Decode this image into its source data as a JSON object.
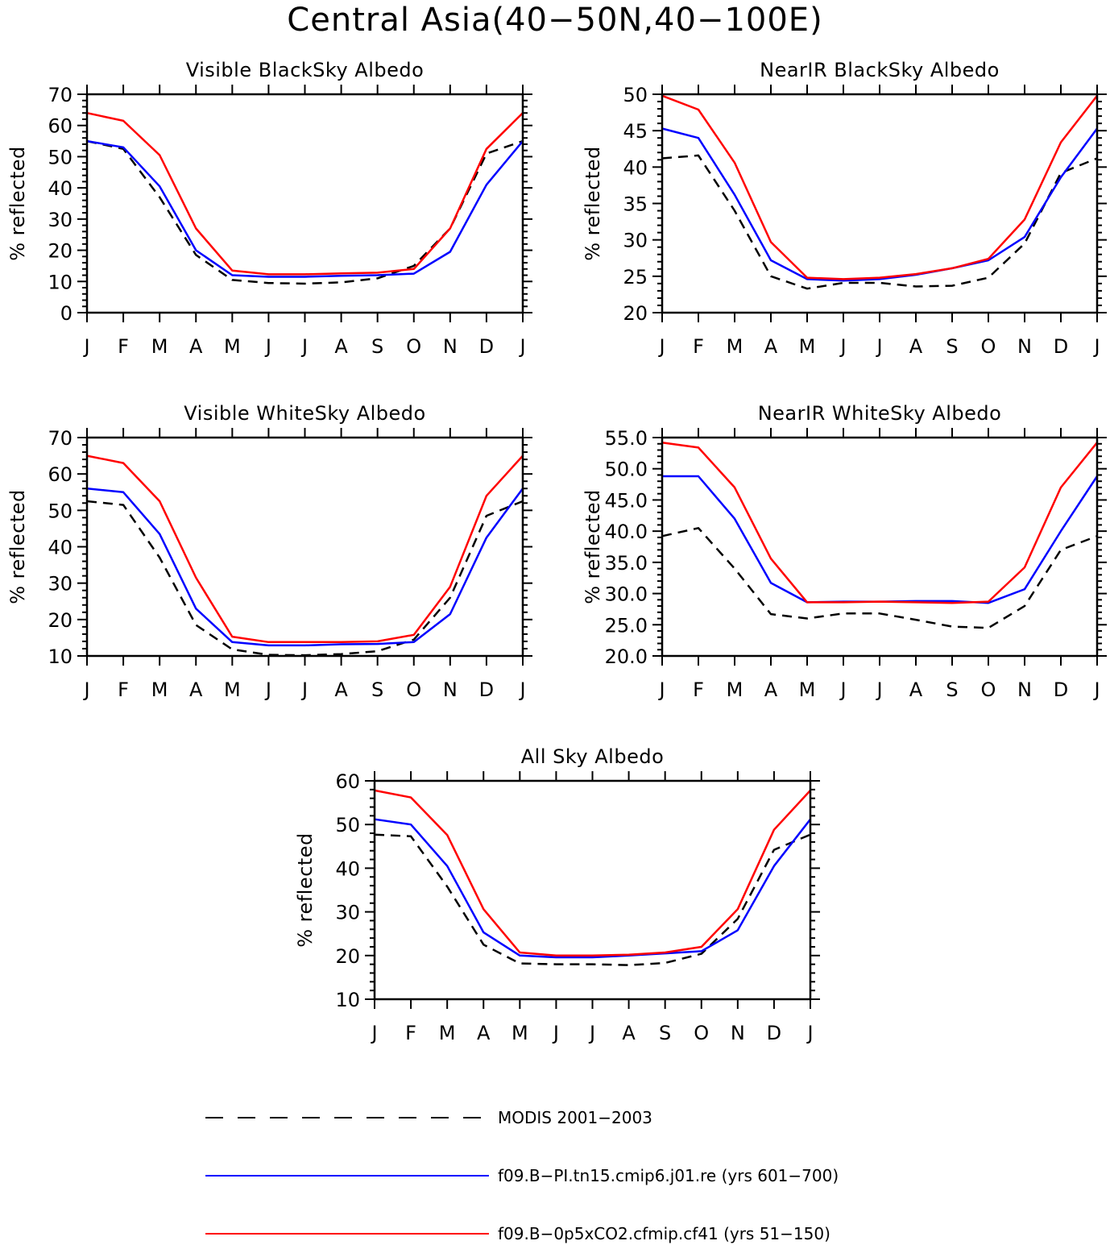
{
  "title": "Central Asia(40−50N,40−100E)",
  "colors": {
    "modis": "#000000",
    "pi": "#0000ff",
    "co2": "#ff0000"
  },
  "legend": [
    {
      "label": "MODIS 2001−2003",
      "color": "#000000",
      "style": "dashed"
    },
    {
      "label": "f09.B−PI.tn15.cmip6.j01.re (yrs 601−700)",
      "color": "#0000ff",
      "style": "solid"
    },
    {
      "label": "f09.B−0p5xCO2.cfmip.cf41 (yrs 51−150)",
      "color": "#ff0000",
      "style": "solid"
    }
  ],
  "chart_data": [
    {
      "type": "line",
      "title": "Visible BlackSky Albedo",
      "ylabel": "% reflected",
      "xlabel": "",
      "categories": [
        "J",
        "F",
        "M",
        "A",
        "M",
        "J",
        "J",
        "A",
        "S",
        "O",
        "N",
        "D",
        "J"
      ],
      "ylim": [
        0,
        70
      ],
      "yticks": [
        0,
        10,
        20,
        30,
        40,
        50,
        60,
        70
      ],
      "ytick_labels": [
        "0",
        "10",
        "20",
        "30",
        "40",
        "50",
        "60",
        "70"
      ],
      "series": [
        {
          "name": "MODIS 2001−2003",
          "style": "dashed",
          "color": "#000000",
          "values": [
            55,
            52.5,
            37,
            18.5,
            10.5,
            9.5,
            9.3,
            9.7,
            11,
            15,
            27,
            51,
            55
          ]
        },
        {
          "name": "f09.B−PI.tn15.cmip6.j01.re (yrs 601−700)",
          "style": "solid",
          "color": "#0000ff",
          "values": [
            55,
            53,
            40.5,
            20,
            12,
            11.5,
            11.5,
            11.8,
            12,
            12.5,
            19.5,
            41,
            55
          ]
        },
        {
          "name": "f09.B−0p5xCO2.cfmip.cf41 (yrs 51−150)",
          "style": "solid",
          "color": "#ff0000",
          "values": [
            64,
            61.5,
            50.5,
            27,
            13.5,
            12.3,
            12.3,
            12.6,
            12.8,
            14,
            27,
            52.5,
            64
          ]
        }
      ]
    },
    {
      "type": "line",
      "title": "NearIR BlackSky Albedo",
      "ylabel": "% reflected",
      "xlabel": "",
      "categories": [
        "J",
        "F",
        "M",
        "A",
        "M",
        "J",
        "J",
        "A",
        "S",
        "O",
        "N",
        "D",
        "J"
      ],
      "ylim": [
        20,
        50
      ],
      "yticks": [
        20,
        25,
        30,
        35,
        40,
        45,
        50
      ],
      "ytick_labels": [
        "20",
        "25",
        "30",
        "35",
        "40",
        "45",
        "50"
      ],
      "series": [
        {
          "name": "MODIS 2001−2003",
          "style": "dashed",
          "color": "#000000",
          "values": [
            41.2,
            41.6,
            34,
            25,
            23.3,
            24.1,
            24.1,
            23.6,
            23.7,
            24.8,
            29.5,
            39.2,
            41.2
          ]
        },
        {
          "name": "f09.B−PI.tn15.cmip6.j01.re (yrs 601−700)",
          "style": "solid",
          "color": "#0000ff",
          "values": [
            45.3,
            44,
            36.2,
            27.2,
            24.6,
            24.4,
            24.6,
            25.2,
            26.1,
            27.2,
            30.4,
            38.6,
            45.3
          ]
        },
        {
          "name": "f09.B−0p5xCO2.cfmip.cf41 (yrs 51−150)",
          "style": "solid",
          "color": "#ff0000",
          "values": [
            49.8,
            47.9,
            40.6,
            29.7,
            24.8,
            24.6,
            24.8,
            25.3,
            26.1,
            27.4,
            32.8,
            43.4,
            49.8
          ]
        }
      ]
    },
    {
      "type": "line",
      "title": "Visible WhiteSky Albedo",
      "ylabel": "% reflected",
      "xlabel": "",
      "categories": [
        "J",
        "F",
        "M",
        "A",
        "M",
        "J",
        "J",
        "A",
        "S",
        "O",
        "N",
        "D",
        "J"
      ],
      "ylim": [
        10,
        70
      ],
      "yticks": [
        10,
        20,
        30,
        40,
        50,
        60,
        70
      ],
      "ytick_labels": [
        "10",
        "20",
        "30",
        "40",
        "50",
        "60",
        "70"
      ],
      "series": [
        {
          "name": "MODIS 2001−2003",
          "style": "dashed",
          "color": "#000000",
          "values": [
            52.5,
            51.5,
            37,
            18.5,
            11.8,
            10.3,
            10.2,
            10.5,
            11.3,
            14.5,
            26,
            48.5,
            52.5
          ]
        },
        {
          "name": "f09.B−PI.tn15.cmip6.j01.re (yrs 601−700)",
          "style": "solid",
          "color": "#0000ff",
          "values": [
            56,
            55,
            43.5,
            23,
            13.8,
            12.9,
            12.9,
            13.2,
            13.3,
            13.8,
            21.5,
            42.5,
            56
          ]
        },
        {
          "name": "f09.B−0p5xCO2.cfmip.cf41 (yrs 51−150)",
          "style": "solid",
          "color": "#ff0000",
          "values": [
            65,
            63,
            52.5,
            31.5,
            15.3,
            13.8,
            13.8,
            13.8,
            14,
            15.8,
            29,
            54,
            65
          ]
        }
      ]
    },
    {
      "type": "line",
      "title": "NearIR WhiteSky Albedo",
      "ylabel": "% reflected",
      "xlabel": "",
      "categories": [
        "J",
        "F",
        "M",
        "A",
        "M",
        "J",
        "J",
        "A",
        "S",
        "O",
        "N",
        "D",
        "J"
      ],
      "ylim": [
        20,
        55
      ],
      "yticks": [
        20,
        25,
        30,
        35,
        40,
        45,
        50,
        55
      ],
      "ytick_labels": [
        "20.0",
        "25.0",
        "30.0",
        "35.0",
        "40.0",
        "45.0",
        "50.0",
        "55.0"
      ],
      "series": [
        {
          "name": "MODIS 2001−2003",
          "style": "dashed",
          "color": "#000000",
          "values": [
            39.2,
            40.5,
            34,
            26.7,
            26,
            26.8,
            26.8,
            25.8,
            24.7,
            24.5,
            28,
            37,
            39.2
          ]
        },
        {
          "name": "f09.B−PI.tn15.cmip6.j01.re (yrs 601−700)",
          "style": "solid",
          "color": "#0000ff",
          "values": [
            48.8,
            48.8,
            42,
            31.7,
            28.6,
            28.7,
            28.7,
            28.8,
            28.8,
            28.5,
            30.7,
            40,
            48.8
          ]
        },
        {
          "name": "f09.B−0p5xCO2.cfmip.cf41 (yrs 51−150)",
          "style": "solid",
          "color": "#ff0000",
          "values": [
            54.2,
            53.4,
            47,
            35.6,
            28.6,
            28.6,
            28.7,
            28.6,
            28.5,
            28.7,
            34.2,
            47,
            54.2
          ]
        }
      ]
    },
    {
      "type": "line",
      "title": "All Sky Albedo",
      "ylabel": "% reflected",
      "xlabel": "",
      "categories": [
        "J",
        "F",
        "M",
        "A",
        "M",
        "J",
        "J",
        "A",
        "S",
        "O",
        "N",
        "D",
        "J"
      ],
      "ylim": [
        10,
        60
      ],
      "yticks": [
        10,
        20,
        30,
        40,
        50,
        60
      ],
      "ytick_labels": [
        "10",
        "20",
        "30",
        "40",
        "50",
        "60"
      ],
      "series": [
        {
          "name": "MODIS 2001−2003",
          "style": "dashed",
          "color": "#000000",
          "values": [
            47.7,
            47.3,
            35.8,
            22.5,
            18.2,
            18,
            18,
            17.8,
            18.3,
            20.4,
            28.4,
            44.2,
            47.7
          ]
        },
        {
          "name": "f09.B−PI.tn15.cmip6.j01.re (yrs 601−700)",
          "style": "solid",
          "color": "#0000ff",
          "values": [
            51.2,
            50,
            40.5,
            25.3,
            20,
            19.6,
            19.6,
            20,
            20.5,
            21,
            25.8,
            40.5,
            51.2
          ]
        },
        {
          "name": "f09.B−0p5xCO2.cfmip.cf41 (yrs 51−150)",
          "style": "solid",
          "color": "#ff0000",
          "values": [
            57.8,
            56.2,
            47.6,
            30.6,
            20.7,
            20,
            20,
            20.2,
            20.7,
            22,
            30.6,
            48.8,
            57.8
          ]
        }
      ]
    }
  ]
}
